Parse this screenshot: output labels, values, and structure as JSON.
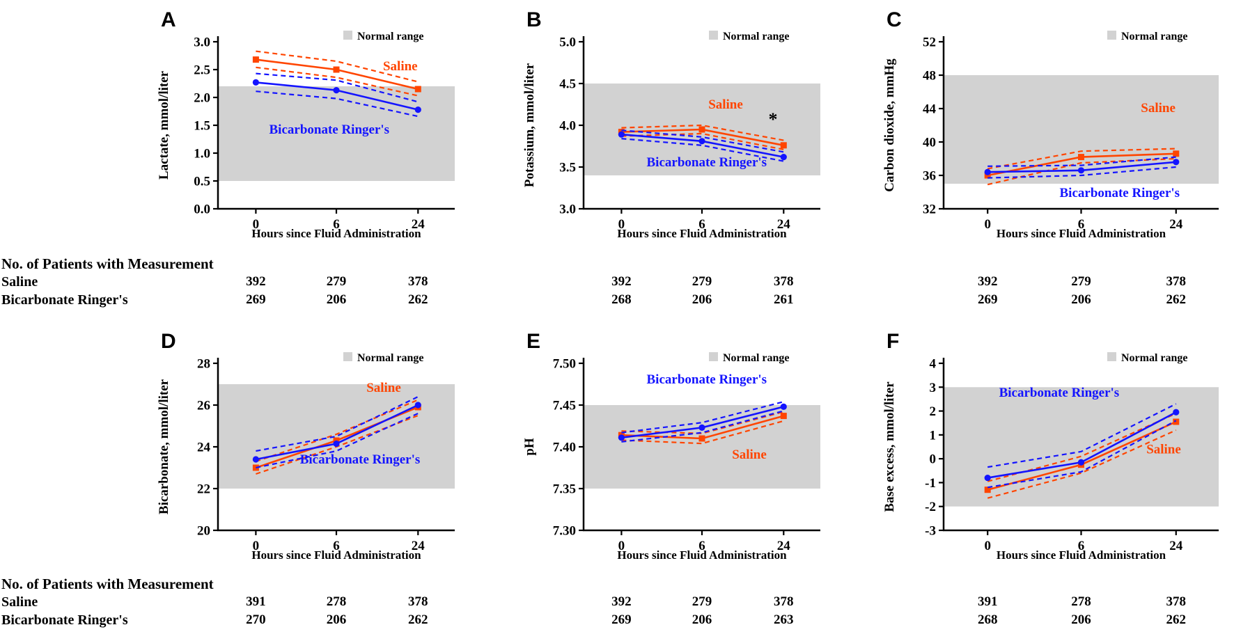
{
  "figure": {
    "legend_label": "Normal range",
    "x_label": "Hours since Fluid Administration",
    "x_ticks": [
      "0",
      "6",
      "24"
    ],
    "colors": {
      "saline": "#FF4500",
      "bicarbonate": "#1414FF",
      "normal_range": "#D2D2D2",
      "axis": "#000000"
    },
    "table": {
      "heading": "No. of Patients with Measurement",
      "row_labels": [
        "Saline",
        "Bicarbonate Ringer's"
      ]
    }
  },
  "chart_data": [
    {
      "id": "A",
      "type": "line",
      "ylabel": "Lactate, mmol/liter",
      "ylim": [
        0,
        3
      ],
      "yticks": [
        0,
        0.5,
        1,
        1.5,
        2,
        2.5,
        3
      ],
      "decimals": 1,
      "normal_range": [
        0.5,
        2.2
      ],
      "x_hours": [
        0,
        6,
        24
      ],
      "series": [
        {
          "name": "Saline",
          "color": "saline",
          "marker": "square",
          "values": [
            2.68,
            2.5,
            2.15
          ],
          "ci_upper": [
            2.83,
            2.65,
            2.28
          ],
          "ci_lower": [
            2.54,
            2.36,
            2.03
          ],
          "label_fx": 0.77,
          "label_fy": 0.17
        },
        {
          "name": "Bicarbonate Ringer's",
          "color": "bicarbonate",
          "marker": "circle",
          "values": [
            2.27,
            2.13,
            1.78
          ],
          "ci_upper": [
            2.43,
            2.31,
            1.92
          ],
          "ci_lower": [
            2.11,
            1.98,
            1.66
          ],
          "label_fx": 0.47,
          "label_fy": 0.55
        }
      ],
      "counts": {
        "saline": [
          392,
          279,
          378
        ],
        "bicarbonate": [
          269,
          206,
          262
        ]
      }
    },
    {
      "id": "B",
      "type": "line",
      "ylabel": "Potassium, mmol/liter",
      "ylim": [
        3,
        5
      ],
      "yticks": [
        3,
        3.5,
        4,
        4.5,
        5
      ],
      "decimals": 1,
      "normal_range": [
        3.4,
        4.5
      ],
      "x_hours": [
        0,
        6,
        24
      ],
      "series": [
        {
          "name": "Saline",
          "color": "saline",
          "marker": "square",
          "values": [
            3.92,
            3.95,
            3.76
          ],
          "ci_upper": [
            3.97,
            4.0,
            3.82
          ],
          "ci_lower": [
            3.87,
            3.9,
            3.71
          ],
          "label_fx": 0.6,
          "label_fy": 0.4
        },
        {
          "name": "Bicarbonate Ringer's",
          "color": "bicarbonate",
          "marker": "circle",
          "values": [
            3.89,
            3.81,
            3.62
          ],
          "ci_upper": [
            3.94,
            3.86,
            3.68
          ],
          "ci_lower": [
            3.84,
            3.76,
            3.57
          ],
          "label_fx": 0.52,
          "label_fy": 0.745
        }
      ],
      "annotation": {
        "text": "*",
        "fx": 0.8,
        "fy": 0.5
      },
      "counts": {
        "saline": [
          392,
          279,
          378
        ],
        "bicarbonate": [
          268,
          206,
          261
        ]
      }
    },
    {
      "id": "C",
      "type": "line",
      "ylabel": "Carbon dioxide, mmHg",
      "ylim": [
        32,
        52
      ],
      "yticks": [
        32,
        36,
        40,
        44,
        48,
        52
      ],
      "decimals": 0,
      "normal_range": [
        35,
        48
      ],
      "x_hours": [
        0,
        6,
        24
      ],
      "series": [
        {
          "name": "Saline",
          "color": "saline",
          "marker": "square",
          "values": [
            36.0,
            38.2,
            38.6
          ],
          "ci_upper": [
            36.8,
            38.9,
            39.2
          ],
          "ci_lower": [
            34.9,
            37.5,
            38.0
          ],
          "label_fx": 0.78,
          "label_fy": 0.42
        },
        {
          "name": "Bicarbonate Ringer's",
          "color": "bicarbonate",
          "marker": "circle",
          "values": [
            36.4,
            36.6,
            37.6
          ],
          "ci_upper": [
            37.1,
            37.2,
            38.2
          ],
          "ci_lower": [
            35.7,
            36.0,
            37.0
          ],
          "label_fx": 0.64,
          "label_fy": 0.93
        }
      ],
      "counts": {
        "saline": [
          392,
          279,
          378
        ],
        "bicarbonate": [
          269,
          206,
          262
        ]
      }
    },
    {
      "id": "D",
      "type": "line",
      "ylabel": "Bicarbonate, mmol/liter",
      "ylim": [
        20,
        28
      ],
      "yticks": [
        20,
        22,
        24,
        26,
        28
      ],
      "decimals": 0,
      "normal_range": [
        22,
        27
      ],
      "x_hours": [
        0,
        6,
        24
      ],
      "series": [
        {
          "name": "Saline",
          "color": "saline",
          "marker": "square",
          "values": [
            23.0,
            24.3,
            25.9
          ],
          "ci_upper": [
            23.3,
            24.6,
            26.25
          ],
          "ci_lower": [
            22.7,
            24.0,
            25.5
          ],
          "label_fx": 0.7,
          "label_fy": 0.17
        },
        {
          "name": "Bicarbonate Ringer's",
          "color": "bicarbonate",
          "marker": "circle",
          "values": [
            23.4,
            24.15,
            26.0
          ],
          "ci_upper": [
            23.8,
            24.5,
            26.4
          ],
          "ci_lower": [
            23.0,
            23.8,
            25.6
          ],
          "label_fx": 0.6,
          "label_fy": 0.6
        }
      ],
      "counts": {
        "saline": [
          391,
          278,
          378
        ],
        "bicarbonate": [
          270,
          206,
          262
        ]
      }
    },
    {
      "id": "E",
      "type": "line",
      "ylabel": "pH",
      "ylim": [
        7.3,
        7.5
      ],
      "yticks": [
        7.3,
        7.35,
        7.4,
        7.45,
        7.5
      ],
      "decimals": 2,
      "normal_range": [
        7.35,
        7.45
      ],
      "x_hours": [
        0,
        6,
        24
      ],
      "series": [
        {
          "name": "Saline",
          "color": "saline",
          "marker": "square",
          "values": [
            7.414,
            7.41,
            7.437
          ],
          "ci_upper": [
            7.419,
            7.416,
            7.442
          ],
          "ci_lower": [
            7.408,
            7.404,
            7.431
          ],
          "label_fx": 0.7,
          "label_fy": 0.57
        },
        {
          "name": "Bicarbonate Ringer's",
          "color": "bicarbonate",
          "marker": "circle",
          "values": [
            7.411,
            7.423,
            7.448
          ],
          "ci_upper": [
            7.417,
            7.429,
            7.454
          ],
          "ci_lower": [
            7.406,
            7.417,
            7.443
          ],
          "label_fx": 0.52,
          "label_fy": 0.12
        }
      ],
      "counts": {
        "saline": [
          392,
          279,
          378
        ],
        "bicarbonate": [
          269,
          206,
          263
        ]
      }
    },
    {
      "id": "F",
      "type": "line",
      "ylabel": "Base excess, mmol/liter",
      "ylim": [
        -3,
        4
      ],
      "yticks": [
        -3,
        -2,
        -1,
        0,
        1,
        2,
        3,
        4
      ],
      "decimals": 0,
      "normal_range": [
        -2,
        3
      ],
      "x_hours": [
        0,
        6,
        24
      ],
      "series": [
        {
          "name": "Saline",
          "color": "saline",
          "marker": "square",
          "values": [
            -1.3,
            -0.25,
            1.55
          ],
          "ci_upper": [
            -0.95,
            0.1,
            1.9
          ],
          "ci_lower": [
            -1.65,
            -0.6,
            1.2
          ],
          "label_fx": 0.8,
          "label_fy": 0.54
        },
        {
          "name": "Bicarbonate Ringer's",
          "color": "bicarbonate",
          "marker": "circle",
          "values": [
            -0.8,
            -0.15,
            1.95
          ],
          "ci_upper": [
            -0.35,
            0.3,
            2.3
          ],
          "ci_lower": [
            -1.2,
            -0.55,
            1.6
          ],
          "label_fx": 0.42,
          "label_fy": 0.2
        }
      ],
      "counts": {
        "saline": [
          391,
          278,
          378
        ],
        "bicarbonate": [
          268,
          206,
          262
        ]
      }
    }
  ]
}
